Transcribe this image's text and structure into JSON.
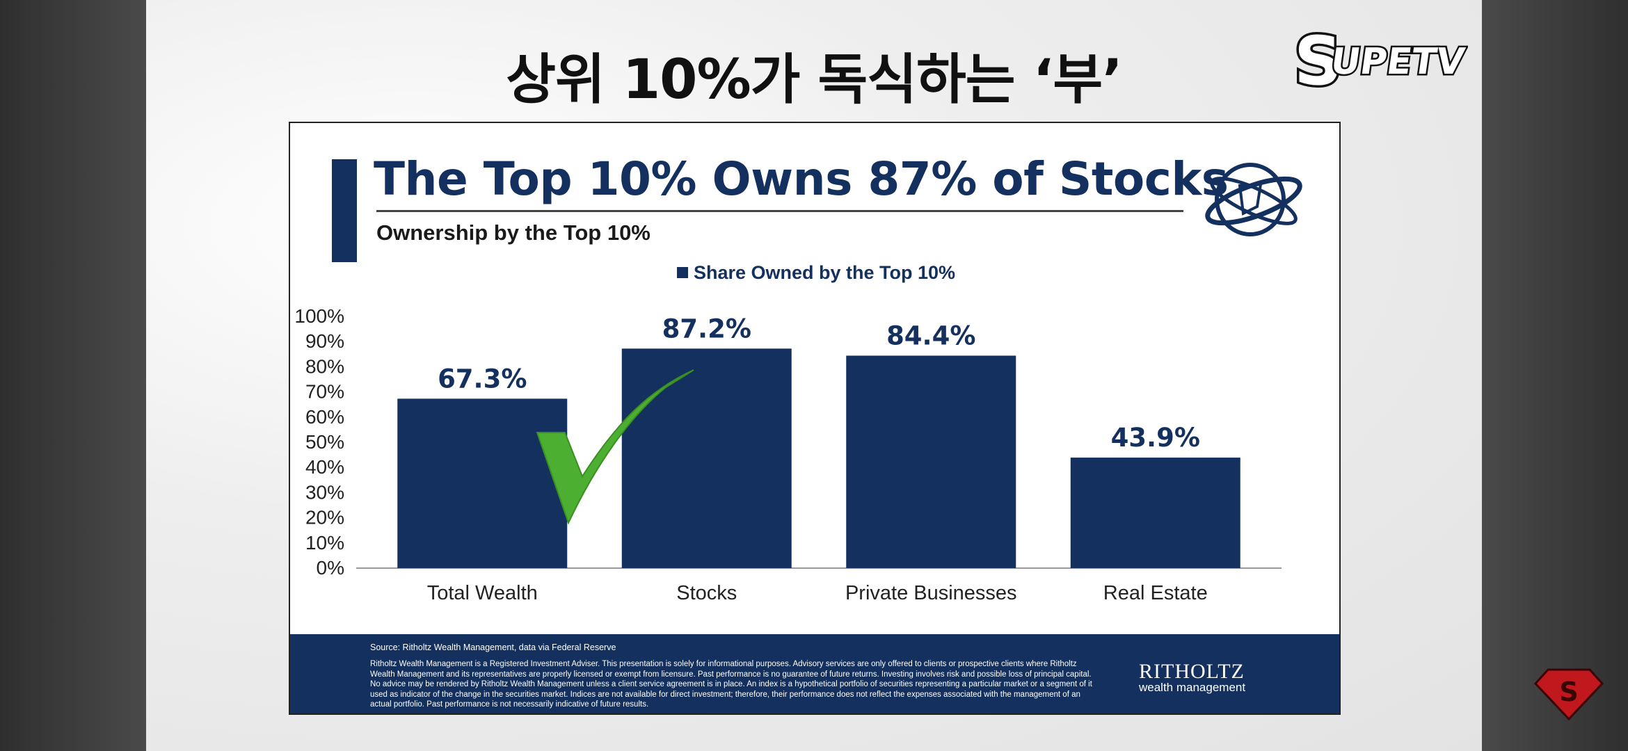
{
  "page": {
    "korean_title": "상위 10%가 독식하는 ‘부’",
    "channel_logo_text": "SUPETV"
  },
  "slide": {
    "title": "The Top 10% Owns 87% of Stocks",
    "subtitle": "Ownership by the Top 10%",
    "legend_label": "Share Owned by the Top 10%",
    "footer": {
      "source": "Source: Ritholtz Wealth Management, data via Federal Reserve",
      "disclaimer": "Ritholtz Wealth Management is a Registered Investment Adviser. This presentation is solely for informational purposes. Advisory services are only offered to clients or prospective clients where Ritholtz Wealth Management and its representatives are properly licensed or exempt from licensure. Past performance is no guarantee of future returns. Investing involves risk and possible loss of principal capital. No advice may be rendered by Ritholtz Wealth Management unless a client service agreement is in place. An index is a hypothetical portfolio of securities representing a particular market or a segment of it used as indicator of the change in the securities market. Indices are not available for direct investment; therefore, their performance does not reflect the expenses associated with the management of an actual portfolio. Past performance is not necessarily indicative of future results.",
      "brand_name": "RITHOLTZ",
      "brand_sub": "wealth management"
    }
  },
  "colors": {
    "bar": "#14305e",
    "checkmark": "#4caf32"
  },
  "chart_data": {
    "type": "bar",
    "categories": [
      "Total Wealth",
      "Stocks",
      "Private Businesses",
      "Real Estate"
    ],
    "series": [
      {
        "name": "Share Owned by the Top 10%",
        "values": [
          67.3,
          87.2,
          84.4,
          43.9
        ]
      }
    ],
    "data_labels": [
      "67.3%",
      "87.2%",
      "84.4%",
      "43.9%"
    ],
    "y_ticks": [
      "100%",
      "90%",
      "80%",
      "70%",
      "60%",
      "50%",
      "40%",
      "30%",
      "20%",
      "10%",
      "0%"
    ],
    "ylim": [
      0,
      100
    ],
    "grid": false,
    "legend_position": "top-center",
    "title": "The Top 10% Owns 87% of Stocks",
    "subtitle": "Ownership by the Top 10%"
  }
}
